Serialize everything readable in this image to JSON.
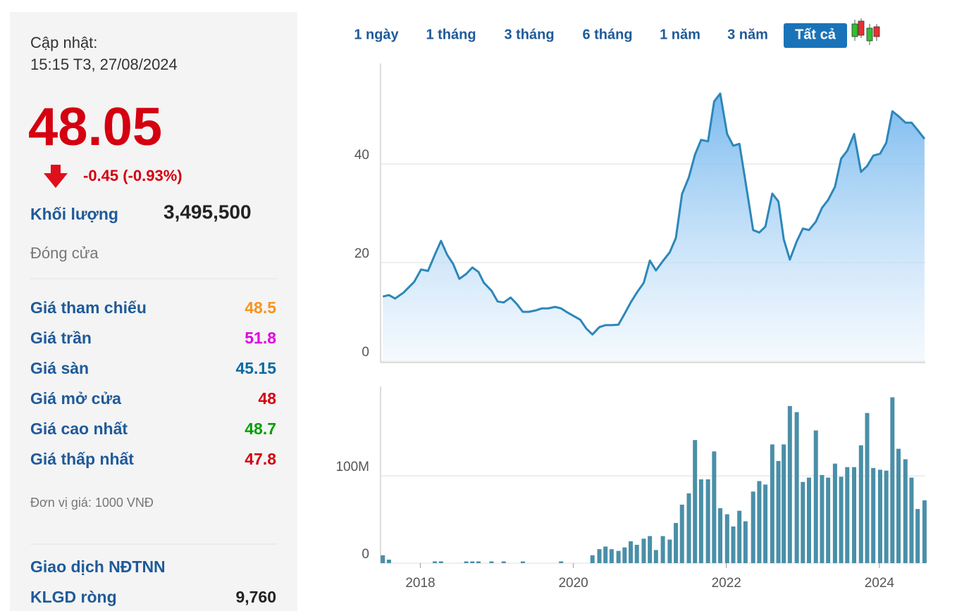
{
  "panel": {
    "update_label": "Cập nhật:",
    "update_time": "15:15 T3, 27/08/2024",
    "price": "48.05",
    "change": "-0.45 (-0.93%)",
    "volume_label": "Khối lượng",
    "volume": "3,495,500",
    "status": "Đóng cửa",
    "rows": [
      {
        "label": "Giá tham chiếu",
        "value": "48.5",
        "color": "#f7941d"
      },
      {
        "label": "Giá trần",
        "value": "51.8",
        "color": "#e000e0"
      },
      {
        "label": "Giá sàn",
        "value": "45.15",
        "color": "#0a6aa1"
      },
      {
        "label": "Giá mở cửa",
        "value": "48",
        "color": "#d40010"
      },
      {
        "label": "Giá cao nhất",
        "value": "48.7",
        "color": "#00a000"
      },
      {
        "label": "Giá thấp nhất",
        "value": "47.8",
        "color": "#d40010"
      }
    ],
    "unit_note": "Đơn vị giá: 1000 VNĐ",
    "foreign_title": "Giao dịch NĐTNN",
    "foreign_rows": [
      {
        "label": "KLGD ròng",
        "value": "9,760"
      }
    ]
  },
  "range_buttons": {
    "items": [
      "1 ngày",
      "1 tháng",
      "3 tháng",
      "6 tháng",
      "1 năm",
      "3 năm",
      "Tất cả"
    ],
    "active": 6
  },
  "chart_data": [
    {
      "type": "line",
      "color": "#2d87b9",
      "x": [
        2017.51,
        2017.59,
        2017.67,
        2017.78,
        2017.92,
        2018.01,
        2018.1,
        2018.19,
        2018.27,
        2018.35,
        2018.43,
        2018.51,
        2018.6,
        2018.68,
        2018.76,
        2018.83,
        2018.93,
        2019.01,
        2019.09,
        2019.18,
        2019.26,
        2019.34,
        2019.42,
        2019.51,
        2019.59,
        2019.67,
        2019.76,
        2019.84,
        2019.92,
        2020.01,
        2020.09,
        2020.17,
        2020.25,
        2020.34,
        2020.42,
        2020.5,
        2020.59,
        2020.67,
        2020.75,
        2020.83,
        2020.92,
        2021.0,
        2021.08,
        2021.17,
        2021.26,
        2021.34,
        2021.42,
        2021.51,
        2021.59,
        2021.67,
        2021.76,
        2021.84,
        2021.92,
        2022.01,
        2022.09,
        2022.17,
        2022.25,
        2022.35,
        2022.43,
        2022.51,
        2022.6,
        2022.68,
        2022.75,
        2022.83,
        2022.92,
        2023.0,
        2023.08,
        2023.17,
        2023.25,
        2023.33,
        2023.42,
        2023.5,
        2023.58,
        2023.67,
        2023.76,
        2023.84,
        2023.92,
        2024.01,
        2024.09,
        2024.17,
        2024.25,
        2024.34,
        2024.42,
        2024.5,
        2024.59
      ],
      "values": [
        13.1,
        13.4,
        12.7,
        13.9,
        16.1,
        18.6,
        18.3,
        21.6,
        24.4,
        21.6,
        19.7,
        16.7,
        17.7,
        19.0,
        18.1,
        15.9,
        14.3,
        12.1,
        11.9,
        12.9,
        11.6,
        10.0,
        10.0,
        10.3,
        10.7,
        10.7,
        11.0,
        10.7,
        9.9,
        9.1,
        8.4,
        6.6,
        5.4,
        6.9,
        7.3,
        7.3,
        7.4,
        9.6,
        11.9,
        13.9,
        15.9,
        20.4,
        18.4,
        20.3,
        22.1,
        25.0,
        33.9,
        37.3,
        41.9,
        44.9,
        44.6,
        52.7,
        54.3,
        46.1,
        43.7,
        44.1,
        36.4,
        26.6,
        26.1,
        27.3,
        34.0,
        32.4,
        24.7,
        20.6,
        24.3,
        26.9,
        26.6,
        28.3,
        31.1,
        32.7,
        35.4,
        41.1,
        42.7,
        46.1,
        38.4,
        39.6,
        41.7,
        42.1,
        44.3,
        50.7,
        49.7,
        48.4,
        48.4,
        46.9,
        45.1
      ],
      "xlim": [
        2017.48,
        2024.6
      ],
      "ylim": [
        0,
        60
      ],
      "yticks": [
        0,
        20,
        40
      ],
      "grid": true
    },
    {
      "type": "bar",
      "color": "#4a8fa8",
      "x": [
        2017.51,
        2017.59,
        2018.19,
        2018.27,
        2018.6,
        2018.68,
        2018.76,
        2018.93,
        2019.09,
        2019.34,
        2019.84,
        2020.25,
        2020.34,
        2020.42,
        2020.5,
        2020.59,
        2020.67,
        2020.75,
        2020.83,
        2020.92,
        2021.0,
        2021.08,
        2021.17,
        2021.26,
        2021.34,
        2021.42,
        2021.51,
        2021.59,
        2021.67,
        2021.76,
        2021.84,
        2021.92,
        2022.01,
        2022.09,
        2022.17,
        2022.25,
        2022.35,
        2022.43,
        2022.51,
        2022.6,
        2022.68,
        2022.75,
        2022.83,
        2022.92,
        2023.0,
        2023.08,
        2023.17,
        2023.25,
        2023.33,
        2023.42,
        2023.5,
        2023.58,
        2023.67,
        2023.76,
        2023.84,
        2023.92,
        2024.01,
        2024.09,
        2024.17,
        2024.25,
        2024.34,
        2024.42,
        2024.5,
        2024.59
      ],
      "values": [
        9000000,
        4000000,
        2000000,
        2000000,
        2000000,
        2000000,
        2000000,
        2000000,
        2000000,
        2000000,
        2000000,
        9000000,
        16000000,
        19000000,
        16000000,
        14000000,
        18000000,
        25000000,
        21000000,
        28000000,
        31000000,
        15000000,
        31000000,
        27000000,
        46000000,
        67000000,
        80000000,
        141000000,
        96000000,
        96000000,
        128000000,
        63000000,
        56000000,
        42000000,
        60000000,
        48000000,
        82000000,
        94000000,
        90000000,
        136000000,
        117000000,
        136000000,
        180000000,
        173000000,
        93000000,
        98000000,
        152000000,
        101000000,
        98000000,
        114000000,
        99000000,
        110000000,
        110000000,
        135000000,
        172000000,
        109000000,
        107000000,
        106000000,
        190000000,
        131000000,
        119000000,
        98000000,
        62000000,
        72000000
      ],
      "xlim": [
        2017.48,
        2024.6
      ],
      "ylim": [
        0,
        200000000
      ],
      "yticks": [
        0,
        {
          "value": 100000000,
          "label": "100M"
        }
      ],
      "xticks": [
        2018,
        2020,
        2022,
        2024
      ],
      "grid": true
    }
  ]
}
